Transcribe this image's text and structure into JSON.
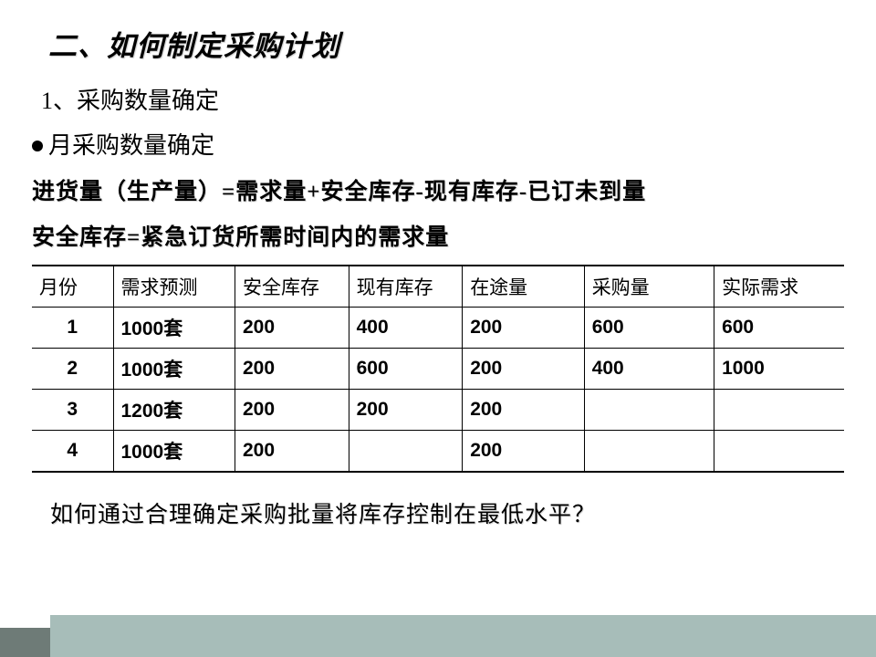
{
  "title": "二、如何制定采购计划",
  "subtitle": "1、采购数量确定",
  "bullet_text": "月采购数量确定",
  "formula1": "进货量（生产量）=需求量+安全库存-现有库存-已订未到量",
  "formula2": "安全库存=紧急订货所需时间内的需求量",
  "table": {
    "headers": [
      "月份",
      "需求预测",
      "安全库存",
      "现有库存",
      "在途量",
      "采购量",
      "实际需求"
    ],
    "col_widths": [
      "10%",
      "15%",
      "14%",
      "14%",
      "15%",
      "16%",
      "16%"
    ],
    "rows": [
      [
        "1",
        "1000套",
        "200",
        "400",
        "200",
        "600",
        "600"
      ],
      [
        "2",
        "1000套",
        "200",
        "600",
        "200",
        "400",
        "1000"
      ],
      [
        "3",
        "1200套",
        "200",
        "200",
        "200",
        "",
        ""
      ],
      [
        "4",
        "1000套",
        "200",
        "",
        "200",
        "",
        ""
      ]
    ]
  },
  "question": "如何通过合理确定采购批量将库存控制在最低水平？",
  "colors": {
    "footer_teal": "#a7bdb9",
    "footer_dark": "#6e7b77"
  }
}
